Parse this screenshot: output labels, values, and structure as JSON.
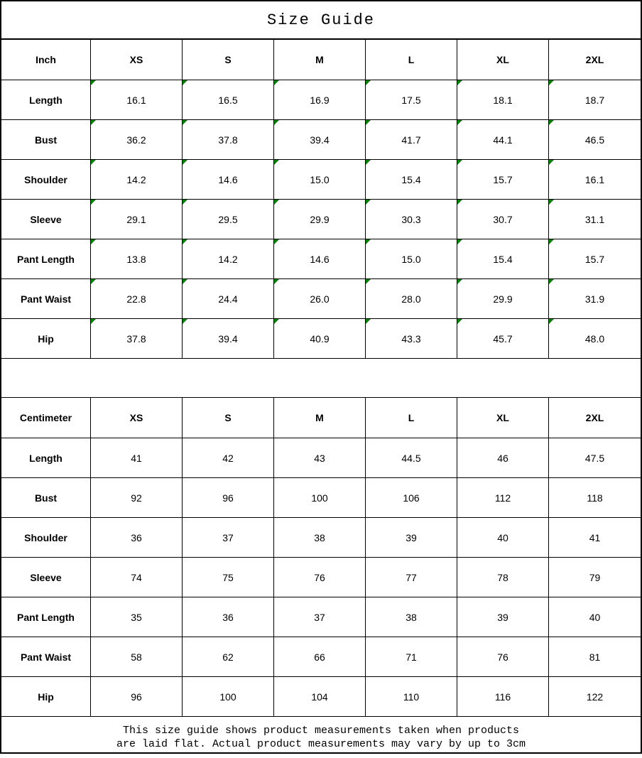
{
  "title": "Size Guide",
  "tables": {
    "inch": {
      "unit_label": "Inch",
      "columns": [
        "XS",
        "S",
        "M",
        "L",
        "XL",
        "2XL"
      ],
      "rows": [
        {
          "label": "Length",
          "values": [
            "16.1",
            "16.5",
            "16.9",
            "17.5",
            "18.1",
            "18.7"
          ]
        },
        {
          "label": "Bust",
          "values": [
            "36.2",
            "37.8",
            "39.4",
            "41.7",
            "44.1",
            "46.5"
          ]
        },
        {
          "label": "Shoulder",
          "values": [
            "14.2",
            "14.6",
            "15.0",
            "15.4",
            "15.7",
            "16.1"
          ]
        },
        {
          "label": "Sleeve",
          "values": [
            "29.1",
            "29.5",
            "29.9",
            "30.3",
            "30.7",
            "31.1"
          ]
        },
        {
          "label": "Pant Length",
          "values": [
            "13.8",
            "14.2",
            "14.6",
            "15.0",
            "15.4",
            "15.7"
          ]
        },
        {
          "label": "Pant Waist",
          "values": [
            "22.8",
            "24.4",
            "26.0",
            "28.0",
            "29.9",
            "31.9"
          ]
        },
        {
          "label": "Hip",
          "values": [
            "37.8",
            "39.4",
            "40.9",
            "43.3",
            "45.7",
            "48.0"
          ]
        }
      ],
      "corner_flags": true
    },
    "cm": {
      "unit_label": "Centimeter",
      "columns": [
        "XS",
        "S",
        "M",
        "L",
        "XL",
        "2XL"
      ],
      "rows": [
        {
          "label": "Length",
          "values": [
            "41",
            "42",
            "43",
            "44.5",
            "46",
            "47.5"
          ]
        },
        {
          "label": "Bust",
          "values": [
            "92",
            "96",
            "100",
            "106",
            "112",
            "118"
          ]
        },
        {
          "label": "Shoulder",
          "values": [
            "36",
            "37",
            "38",
            "39",
            "40",
            "41"
          ]
        },
        {
          "label": "Sleeve",
          "values": [
            "74",
            "75",
            "76",
            "77",
            "78",
            "79"
          ]
        },
        {
          "label": "Pant Length",
          "values": [
            "35",
            "36",
            "37",
            "38",
            "39",
            "40"
          ]
        },
        {
          "label": "Pant Waist",
          "values": [
            "58",
            "62",
            "66",
            "71",
            "76",
            "81"
          ]
        },
        {
          "label": "Hip",
          "values": [
            "96",
            "100",
            "104",
            "110",
            "116",
            "122"
          ]
        }
      ],
      "corner_flags": false
    }
  },
  "footer": {
    "line1": "This size guide shows product measurements taken when products",
    "line2": "are laid flat. Actual product measurements may vary by up to 3cm"
  },
  "colors": {
    "border": "#000000",
    "background": "#ffffff",
    "text": "#000000",
    "corner_flag": "#008000"
  },
  "icons": {
    "corner_flag": "green-corner-triangle-icon"
  }
}
